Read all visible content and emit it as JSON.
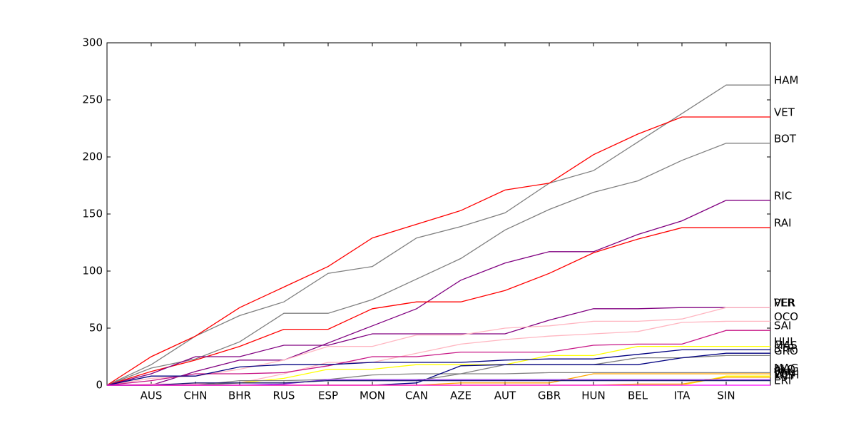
{
  "chart_data": {
    "type": "line",
    "categories": [
      null,
      "AUS",
      "CHN",
      "BHR",
      "RUS",
      "ESP",
      "MON",
      "CAN",
      "AZE",
      "AUT",
      "GBR",
      "HUN",
      "BEL",
      "ITA",
      "SIN",
      null
    ],
    "ylim": [
      0,
      300
    ],
    "yticks": [
      0,
      50,
      100,
      150,
      200,
      250,
      300
    ],
    "series": [
      {
        "name": "HAM",
        "color": "#808080",
        "values": [
          0,
          18,
          43,
          61,
          73,
          98,
          104,
          129,
          139,
          151,
          177,
          188,
          213,
          238,
          263,
          263
        ]
      },
      {
        "name": "VET",
        "color": "#ff0000",
        "values": [
          0,
          25,
          43,
          68,
          86,
          104,
          129,
          141,
          153,
          171,
          177,
          202,
          220,
          235,
          235,
          235
        ]
      },
      {
        "name": "BOT",
        "color": "#808080",
        "values": [
          0,
          15,
          23,
          38,
          63,
          63,
          75,
          93,
          111,
          136,
          154,
          169,
          179,
          197,
          212,
          212
        ]
      },
      {
        "name": "RIC",
        "color": "#800080",
        "values": [
          0,
          0,
          12,
          22,
          22,
          37,
          52,
          67,
          92,
          107,
          117,
          117,
          132,
          144,
          162,
          162
        ]
      },
      {
        "name": "RAI",
        "color": "#ff0000",
        "values": [
          0,
          12,
          22,
          34,
          49,
          49,
          67,
          73,
          73,
          83,
          98,
          116,
          128,
          138,
          138,
          138
        ]
      },
      {
        "name": "VER",
        "color": "#800080",
        "values": [
          0,
          10,
          25,
          25,
          35,
          35,
          45,
          45,
          45,
          45,
          57,
          67,
          67,
          68,
          68,
          68
        ]
      },
      {
        "name": "PER",
        "color": "#ffb6c1",
        "values": [
          0,
          6,
          8,
          14,
          22,
          34,
          34,
          44,
          44,
          50,
          52,
          56,
          56,
          58,
          68,
          68
        ]
      },
      {
        "name": "OCO",
        "color": "#ffb6c1",
        "values": [
          0,
          1,
          1,
          2,
          10,
          20,
          20,
          28,
          36,
          40,
          43,
          45,
          47,
          55,
          56,
          56
        ]
      },
      {
        "name": "SAI",
        "color": "#c71585",
        "values": [
          0,
          4,
          10,
          10,
          11,
          17,
          25,
          25,
          29,
          29,
          29,
          35,
          36,
          36,
          48,
          48
        ]
      },
      {
        "name": "HUL",
        "color": "#ffff00",
        "values": [
          0,
          0,
          0,
          2,
          6,
          14,
          14,
          18,
          18,
          18,
          26,
          26,
          34,
          34,
          34,
          34
        ]
      },
      {
        "name": "MAS",
        "color": "#000080",
        "values": [
          0,
          8,
          8,
          16,
          18,
          18,
          20,
          20,
          20,
          22,
          23,
          23,
          27,
          31,
          31,
          31
        ]
      },
      {
        "name": "GRO",
        "color": "#808080",
        "values": [
          0,
          0,
          0,
          4,
          4,
          5,
          9,
          10,
          10,
          18,
          18,
          18,
          24,
          24,
          26,
          26
        ]
      },
      {
        "name": "STR",
        "color": "#000080",
        "values": [
          0,
          0,
          0,
          0,
          0,
          0,
          0,
          2,
          17,
          18,
          18,
          18,
          18,
          24,
          28,
          28
        ]
      },
      {
        "name": "MAG",
        "color": "#808080",
        "values": [
          0,
          0,
          0,
          2,
          2,
          4,
          4,
          4,
          10,
          10,
          11,
          11,
          11,
          11,
          11,
          11
        ]
      },
      {
        "name": "ALO",
        "color": "#ffa500",
        "values": [
          0,
          0,
          0,
          0,
          0,
          0,
          0,
          0,
          2,
          2,
          2,
          10,
          10,
          10,
          10,
          10
        ]
      },
      {
        "name": "PAL",
        "color": "#ffff00",
        "values": [
          0,
          0,
          0,
          0,
          0,
          0,
          0,
          0,
          0,
          0,
          0,
          0,
          0,
          0,
          8,
          8
        ]
      },
      {
        "name": "VAN",
        "color": "#ffa500",
        "values": [
          0,
          0,
          0,
          0,
          0,
          0,
          0,
          0,
          0,
          0,
          0,
          0,
          1,
          1,
          7,
          7
        ]
      },
      {
        "name": "WEH",
        "color": "#8a2be2",
        "values": [
          0,
          0,
          0,
          0,
          1,
          5,
          5,
          5,
          5,
          5,
          5,
          5,
          5,
          5,
          5,
          5
        ]
      },
      {
        "name": "KVY",
        "color": "#191970",
        "values": [
          0,
          0,
          2,
          2,
          2,
          4,
          4,
          4,
          4,
          4,
          4,
          4,
          4,
          4,
          4,
          4
        ]
      },
      {
        "name": "ERI",
        "color": "#ff00ff",
        "values": [
          0,
          0,
          0,
          0,
          0,
          0,
          0,
          0,
          0,
          0,
          0,
          0,
          0,
          0,
          0,
          0
        ]
      }
    ]
  }
}
